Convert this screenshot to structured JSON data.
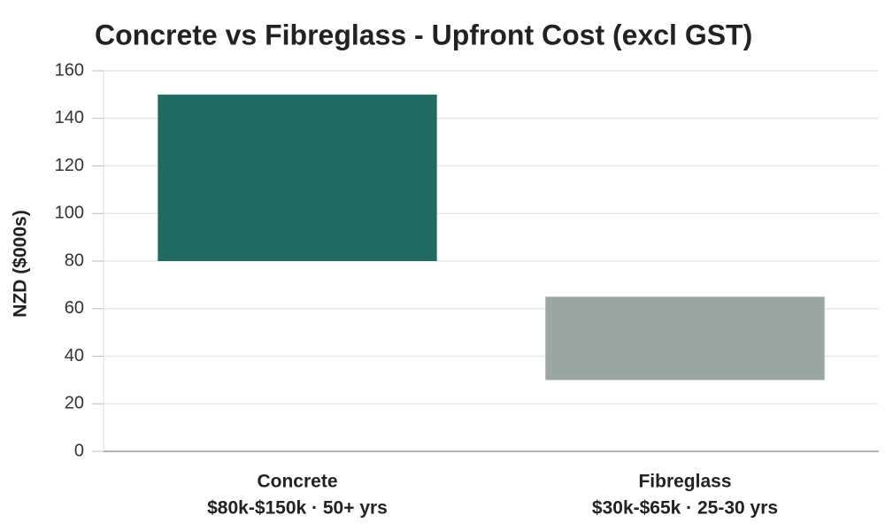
{
  "chart_data": {
    "type": "floating-bar",
    "title": "Concrete vs Fibreglass - Upfront Cost (excl GST)",
    "y_label": "NZD ($000s)",
    "categories": [
      "Concrete",
      "Fibreglass"
    ],
    "category_sublabels": [
      "$80k-$150k · 50+ yrs",
      "$30k-$65k · 25-30 yrs"
    ],
    "low": [
      80,
      30
    ],
    "high": [
      150,
      65
    ],
    "colors": [
      "#1f6b61",
      "#9aa6a2"
    ],
    "ylim": [
      0,
      160
    ],
    "yticks": [
      0,
      20,
      40,
      60,
      80,
      100,
      120,
      140,
      160
    ],
    "grid": true
  }
}
